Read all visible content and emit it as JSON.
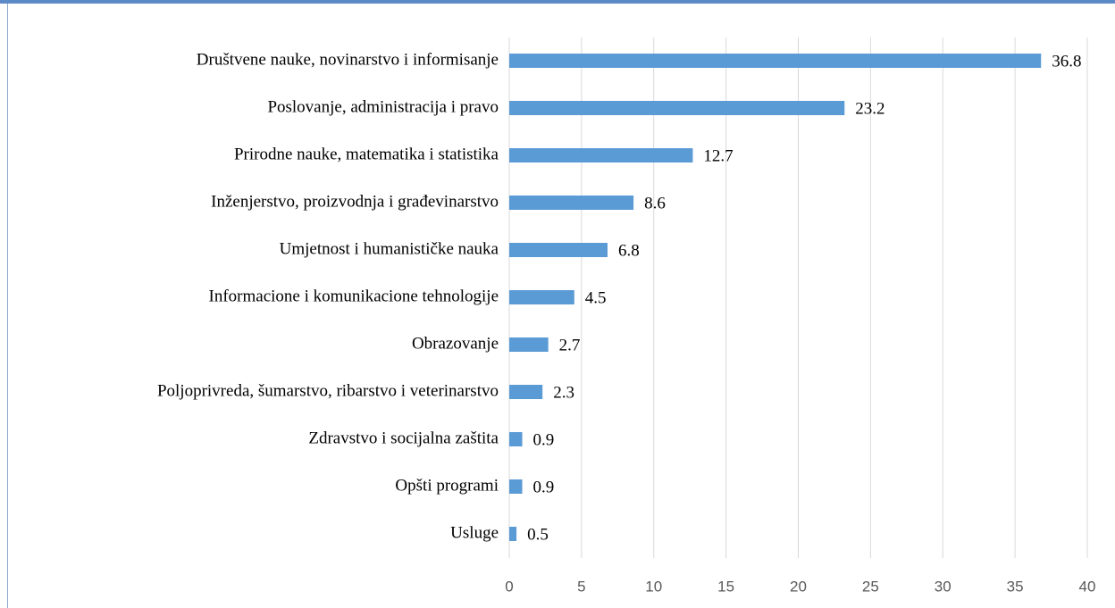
{
  "chart_data": {
    "type": "bar",
    "orientation": "horizontal",
    "categories": [
      "Društvene nauke, novinarstvo i informisanje",
      "Poslovanje, administracija i pravo",
      "Prirodne nauke, matematika i statistika",
      "Inženjerstvo, proizvodnja i građevinarstvo",
      "Umjetnost i humanističke nauka",
      "Informacione i komunikacione tehnologije",
      "Obrazovanje",
      "Poljoprivreda, šumarstvo, ribarstvo i veterinarstvo",
      "Zdravstvo i socijalna zaštita",
      "Opšti programi",
      "Usluge"
    ],
    "values": [
      36.8,
      23.2,
      12.7,
      8.6,
      6.8,
      4.5,
      2.7,
      2.3,
      0.9,
      0.9,
      0.5
    ],
    "color": "#5b9bd5",
    "xlim": [
      0,
      40
    ],
    "xticks": [
      0,
      5,
      10,
      15,
      20,
      25,
      30,
      35,
      40
    ],
    "grid": true
  }
}
